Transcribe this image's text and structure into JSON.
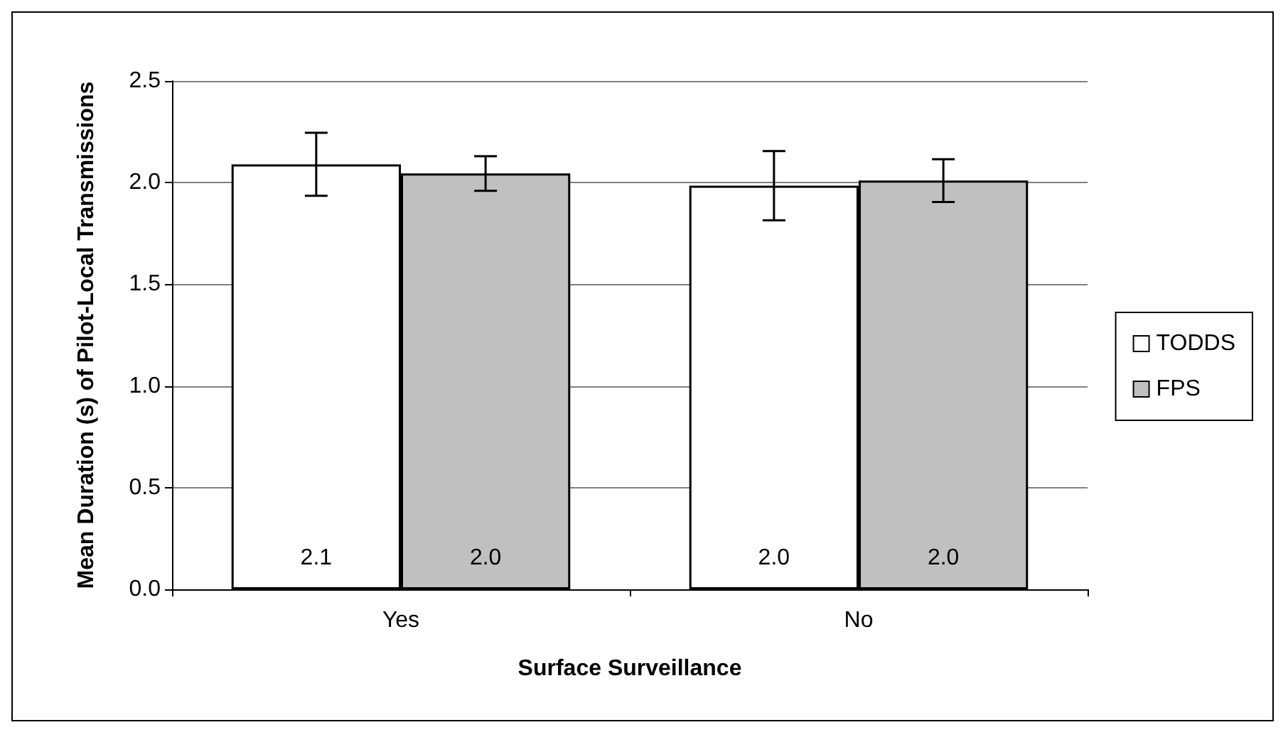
{
  "chart_data": {
    "type": "bar",
    "xlabel": "Surface Surveillance",
    "ylabel": "Mean Duration (s) of Pilot-Local Transmissions",
    "categories": [
      "Yes",
      "No"
    ],
    "series": [
      {
        "name": "TODDS",
        "color": "#ffffff",
        "values": [
          2.09,
          1.985
        ],
        "errors": [
          0.155,
          0.17
        ],
        "value_labels": [
          "2.1",
          "2.0"
        ]
      },
      {
        "name": "FPS",
        "color": "#c0c0c0",
        "values": [
          2.045,
          2.01
        ],
        "errors": [
          0.085,
          0.105
        ],
        "value_labels": [
          "2.0",
          "2.0"
        ]
      }
    ],
    "ylim": [
      0,
      2.5
    ],
    "yticks": [
      {
        "value": 0,
        "label": "0.0"
      },
      {
        "value": 0.5,
        "label": "0.5"
      },
      {
        "value": 1,
        "label": "1.0"
      },
      {
        "value": 1.5,
        "label": "1.5"
      },
      {
        "value": 2,
        "label": "2.0"
      },
      {
        "value": 2.5,
        "label": "2.5"
      }
    ],
    "grid": "y",
    "legend": "right"
  }
}
